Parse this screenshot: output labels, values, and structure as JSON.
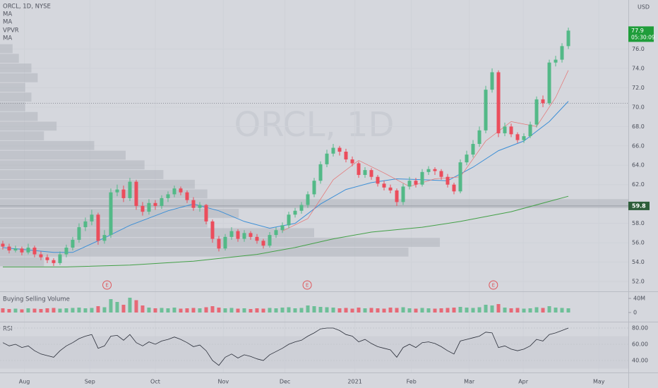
{
  "chart_data": {
    "type": "candlestick",
    "symbol_legend": "ORCL, 1D, NYSE",
    "indicator_legends": [
      "MA",
      "MA",
      "VPVR",
      "MA"
    ],
    "currency": "USD",
    "watermark": "ORCL, 1D",
    "up_color": "#53b987",
    "down_color": "#eb4d5c",
    "ohlc": [
      [
        55.9,
        56.2,
        55.3,
        55.6
      ],
      [
        55.6,
        55.9,
        54.9,
        55.2
      ],
      [
        55.2,
        55.7,
        55.0,
        55.4
      ],
      [
        55.4,
        55.6,
        54.7,
        55.0
      ],
      [
        55.0,
        55.9,
        54.8,
        55.5
      ],
      [
        55.5,
        55.7,
        54.5,
        54.8
      ],
      [
        54.8,
        55.1,
        54.2,
        54.5
      ],
      [
        54.5,
        54.8,
        53.9,
        54.2
      ],
      [
        54.2,
        54.4,
        53.6,
        53.9
      ],
      [
        53.9,
        55.1,
        53.7,
        54.8
      ],
      [
        54.8,
        55.8,
        54.5,
        55.5
      ],
      [
        55.5,
        56.6,
        55.2,
        56.3
      ],
      [
        56.3,
        58.0,
        56.0,
        57.6
      ],
      [
        57.6,
        58.6,
        57.2,
        58.2
      ],
      [
        58.2,
        59.4,
        57.8,
        58.9
      ],
      [
        58.9,
        59.1,
        55.8,
        56.2
      ],
      [
        56.2,
        57.3,
        55.9,
        56.8
      ],
      [
        56.8,
        61.6,
        56.5,
        61.2
      ],
      [
        61.2,
        62.0,
        60.8,
        61.5
      ],
      [
        61.5,
        61.9,
        60.2,
        60.6
      ],
      [
        60.6,
        62.7,
        60.3,
        62.3
      ],
      [
        62.3,
        62.5,
        59.4,
        59.8
      ],
      [
        59.8,
        60.2,
        58.8,
        59.2
      ],
      [
        59.2,
        60.5,
        58.9,
        60.1
      ],
      [
        60.1,
        60.4,
        59.4,
        59.8
      ],
      [
        59.8,
        60.9,
        59.5,
        60.6
      ],
      [
        60.6,
        61.3,
        60.2,
        61.0
      ],
      [
        61.0,
        61.9,
        60.7,
        61.6
      ],
      [
        61.6,
        61.8,
        60.9,
        61.2
      ],
      [
        61.2,
        61.4,
        60.1,
        60.4
      ],
      [
        60.4,
        60.7,
        59.3,
        59.6
      ],
      [
        59.6,
        60.2,
        59.2,
        59.9
      ],
      [
        59.9,
        60.0,
        57.9,
        58.2
      ],
      [
        58.2,
        58.4,
        56.0,
        56.4
      ],
      [
        56.4,
        56.7,
        55.1,
        55.4
      ],
      [
        55.4,
        56.9,
        55.2,
        56.6
      ],
      [
        56.6,
        57.6,
        56.3,
        57.2
      ],
      [
        57.2,
        57.4,
        56.1,
        56.4
      ],
      [
        56.4,
        57.3,
        56.1,
        57.0
      ],
      [
        57.0,
        57.2,
        56.3,
        56.6
      ],
      [
        56.6,
        56.9,
        55.9,
        56.2
      ],
      [
        56.2,
        56.4,
        55.4,
        55.7
      ],
      [
        55.7,
        57.1,
        55.5,
        56.8
      ],
      [
        56.8,
        57.6,
        56.5,
        57.3
      ],
      [
        57.3,
        58.1,
        57.0,
        57.8
      ],
      [
        57.8,
        59.2,
        57.5,
        58.9
      ],
      [
        58.9,
        59.6,
        58.6,
        59.3
      ],
      [
        59.3,
        60.2,
        59.0,
        59.9
      ],
      [
        59.9,
        61.3,
        59.6,
        61.0
      ],
      [
        61.0,
        62.7,
        60.7,
        62.4
      ],
      [
        62.4,
        64.4,
        62.1,
        64.1
      ],
      [
        64.1,
        65.6,
        63.8,
        65.2
      ],
      [
        65.2,
        66.2,
        64.9,
        65.8
      ],
      [
        65.8,
        66.0,
        65.0,
        65.4
      ],
      [
        65.4,
        65.7,
        64.3,
        64.6
      ],
      [
        64.6,
        64.9,
        63.9,
        64.2
      ],
      [
        64.2,
        64.4,
        62.7,
        63.0
      ],
      [
        63.0,
        63.8,
        62.7,
        63.5
      ],
      [
        63.5,
        63.7,
        62.5,
        62.8
      ],
      [
        62.8,
        63.0,
        61.8,
        62.1
      ],
      [
        62.1,
        62.4,
        61.4,
        61.7
      ],
      [
        61.7,
        62.0,
        61.1,
        61.4
      ],
      [
        61.4,
        61.6,
        59.8,
        60.2
      ],
      [
        60.2,
        62.1,
        59.9,
        61.8
      ],
      [
        61.8,
        62.8,
        61.5,
        62.4
      ],
      [
        62.4,
        62.7,
        61.7,
        62.0
      ],
      [
        62.0,
        63.6,
        61.8,
        63.3
      ],
      [
        63.3,
        63.9,
        63.0,
        63.6
      ],
      [
        63.6,
        63.8,
        63.0,
        63.4
      ],
      [
        63.4,
        63.6,
        62.5,
        62.8
      ],
      [
        62.8,
        63.1,
        61.7,
        62.0
      ],
      [
        62.0,
        62.2,
        61.0,
        61.3
      ],
      [
        61.3,
        64.6,
        61.1,
        64.3
      ],
      [
        64.3,
        65.5,
        64.0,
        65.1
      ],
      [
        65.1,
        66.6,
        64.8,
        66.2
      ],
      [
        66.2,
        68.0,
        65.9,
        67.6
      ],
      [
        67.6,
        72.2,
        67.3,
        71.8
      ],
      [
        71.8,
        74.0,
        71.5,
        73.6
      ],
      [
        73.6,
        73.8,
        66.9,
        67.3
      ],
      [
        67.3,
        68.4,
        67.0,
        68.0
      ],
      [
        68.0,
        68.3,
        66.9,
        67.2
      ],
      [
        67.2,
        67.4,
        66.3,
        66.6
      ],
      [
        66.6,
        67.3,
        66.3,
        67.0
      ],
      [
        67.0,
        68.5,
        66.8,
        68.2
      ],
      [
        68.2,
        71.1,
        67.9,
        70.8
      ],
      [
        70.8,
        71.2,
        70.0,
        70.4
      ],
      [
        70.4,
        74.9,
        70.2,
        74.6
      ],
      [
        74.6,
        75.3,
        74.2,
        74.9
      ],
      [
        74.9,
        76.6,
        74.6,
        76.3
      ],
      [
        76.3,
        78.2,
        76.0,
        77.9
      ]
    ],
    "xlim": [
      -0.44,
      98.44
    ],
    "xticks": [
      {
        "value": 3.4,
        "label": "Aug"
      },
      {
        "value": 13.7,
        "label": "Sep"
      },
      {
        "value": 24,
        "label": "Oct"
      },
      {
        "value": 34.7,
        "label": "Nov"
      },
      {
        "value": 44.4,
        "label": "Dec"
      },
      {
        "value": 55.4,
        "label": "2021"
      },
      {
        "value": 64.3,
        "label": "Feb"
      },
      {
        "value": 73.4,
        "label": "Mar"
      },
      {
        "value": 81.9,
        "label": "Apr"
      },
      {
        "value": 93.8,
        "label": "May"
      }
    ],
    "ylim": [
      50.98,
      81.06
    ],
    "yticks": [
      {
        "value": 52,
        "label": "52.0"
      },
      {
        "value": 54,
        "label": "54.0"
      },
      {
        "value": 56,
        "label": "56.0"
      },
      {
        "value": 58,
        "label": "58.0"
      },
      {
        "value": 62,
        "label": "62.0"
      },
      {
        "value": 64,
        "label": "64.0"
      },
      {
        "value": 66,
        "label": "66.0"
      },
      {
        "value": 68,
        "label": "68.0"
      },
      {
        "value": 70,
        "label": "70.0"
      },
      {
        "value": 72,
        "label": "72.0"
      },
      {
        "value": 74,
        "label": "74.0"
      },
      {
        "value": 76,
        "label": "76.0"
      }
    ],
    "last_price": 77.9,
    "countdown": "05:30:09",
    "price_line": 59.8,
    "dotted_line": 70.4,
    "ma_lines": [
      {
        "color": "#3d8fd6",
        "x": [
          0,
          8,
          11,
          16,
          20,
          26,
          30,
          34,
          38,
          42,
          46,
          50,
          54,
          58,
          62,
          66,
          70,
          74,
          78,
          82,
          86,
          89
        ],
        "values": [
          55.5,
          55.0,
          55.0,
          56.5,
          57.8,
          59.3,
          60.0,
          59.3,
          58.2,
          57.5,
          58.0,
          60.0,
          61.5,
          62.2,
          62.6,
          62.5,
          62.4,
          63.8,
          65.5,
          66.5,
          68.5,
          70.6
        ]
      },
      {
        "color": "#43a047",
        "x": [
          0,
          10,
          20,
          30,
          40,
          46,
          52,
          58,
          66,
          72,
          80,
          89
        ],
        "values": [
          53.5,
          53.5,
          53.7,
          54.1,
          54.8,
          55.5,
          56.4,
          57.1,
          57.6,
          58.2,
          59.2,
          60.8
        ]
      },
      {
        "color": "#e57373",
        "x": [
          44,
          48,
          52,
          56,
          60,
          64,
          68,
          72,
          76,
          80,
          84,
          87,
          89
        ],
        "values": [
          57.2,
          58.5,
          62.5,
          64.5,
          63.2,
          61.8,
          62.6,
          62.8,
          66.5,
          68.5,
          68.0,
          71.0,
          73.8
        ]
      }
    ],
    "vpvr": {
      "color": "#a9acb5",
      "prices": [
        54,
        55,
        56,
        57,
        58,
        59,
        60,
        61,
        62,
        63,
        64,
        65,
        66,
        67,
        68,
        69,
        70,
        71,
        72,
        73,
        74,
        75,
        76
      ],
      "values": [
        70,
        650,
        700,
        500,
        330,
        380,
        1000,
        330,
        310,
        260,
        230,
        200,
        150,
        70,
        90,
        60,
        40,
        50,
        40,
        60,
        50,
        30,
        20
      ]
    },
    "events": [
      {
        "x": 16.4,
        "label": "E"
      },
      {
        "x": 47.9,
        "label": "E"
      },
      {
        "x": 77.2,
        "label": "E"
      }
    ],
    "volume": {
      "title": "Buying Selling Volume",
      "values": [
        12,
        10,
        11,
        9,
        12,
        11,
        10,
        12,
        13,
        11,
        12,
        13,
        14,
        12,
        13,
        18,
        15,
        38,
        30,
        22,
        42,
        35,
        20,
        14,
        12,
        13,
        12,
        14,
        11,
        12,
        13,
        12,
        15,
        18,
        14,
        12,
        13,
        11,
        12,
        10,
        12,
        11,
        13,
        12,
        14,
        15,
        12,
        13,
        20,
        18,
        16,
        15,
        14,
        12,
        13,
        11,
        14,
        12,
        13,
        12,
        11,
        14,
        13,
        15,
        12,
        11,
        13,
        12,
        11,
        12,
        13,
        14,
        16,
        14,
        13,
        15,
        22,
        20,
        24,
        14,
        12,
        13,
        11,
        12,
        15,
        13,
        18,
        14,
        13,
        12
      ],
      "ylim": [
        -24,
        56
      ],
      "yticks": [
        {
          "value": 40,
          "label": "40M"
        },
        0
      ]
    },
    "rsi": {
      "title": "RSI",
      "color": "#2a2e39",
      "values": [
        62,
        58,
        60,
        56,
        58,
        52,
        48,
        46,
        44,
        52,
        58,
        62,
        67,
        70,
        72,
        55,
        58,
        70,
        71,
        65,
        72,
        62,
        58,
        63,
        60,
        64,
        66,
        69,
        66,
        62,
        57,
        59,
        52,
        40,
        34,
        44,
        48,
        43,
        47,
        45,
        42,
        40,
        47,
        51,
        55,
        60,
        63,
        65,
        70,
        74,
        79,
        80,
        80,
        77,
        72,
        70,
        63,
        66,
        61,
        57,
        55,
        53,
        44,
        56,
        60,
        56,
        62,
        63,
        61,
        57,
        52,
        48,
        64,
        66,
        68,
        70,
        75,
        74,
        56,
        58,
        54,
        52,
        54,
        58,
        66,
        64,
        72,
        74,
        77,
        80
      ],
      "ylim": [
        25.2,
        86.1
      ],
      "yticks": [
        {
          "value": 80,
          "label": "80.00"
        },
        {
          "value": 60,
          "label": "60.00"
        },
        {
          "value": 40,
          "label": "40.00"
        }
      ],
      "band": [
        30,
        70
      ]
    }
  }
}
